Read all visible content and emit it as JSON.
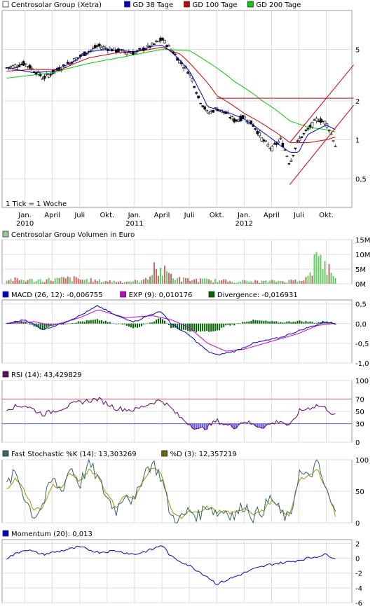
{
  "chart_data": {
    "type": "line",
    "note_tick": "1 Tick = 1 Woche",
    "x_labels": [
      {
        "label": "Jan.",
        "year": "2010",
        "date": "2010-01"
      },
      {
        "label": "April",
        "year": "",
        "date": "2010-04"
      },
      {
        "label": "Juli",
        "year": "",
        "date": "2010-07"
      },
      {
        "label": "Okt.",
        "year": "",
        "date": "2010-10"
      },
      {
        "label": "Jan.",
        "year": "2011",
        "date": "2011-01"
      },
      {
        "label": "April",
        "year": "",
        "date": "2011-04"
      },
      {
        "label": "Juli",
        "year": "",
        "date": "2011-07"
      },
      {
        "label": "Okt.",
        "year": "",
        "date": "2011-10"
      },
      {
        "label": "Jan.",
        "year": "2012",
        "date": "2012-01"
      },
      {
        "label": "April",
        "year": "",
        "date": "2012-04"
      },
      {
        "label": "Juli",
        "year": "",
        "date": "2012-07"
      },
      {
        "label": "Okt.",
        "year": "",
        "date": "2012-10"
      }
    ],
    "price": {
      "scale": "log",
      "y_ticks": [
        "5",
        "2",
        "1",
        "0,5"
      ],
      "y_tick_values": [
        5,
        2,
        1,
        0.5
      ],
      "ylim": [
        0.3,
        10
      ],
      "legend": [
        {
          "name": "Centrosolar Group (Xetra)",
          "color": "#ffffff"
        },
        {
          "name": "GD 38 Tage",
          "color": "#0000cc"
        },
        {
          "name": "GD 100 Tage",
          "color": "#cc0000"
        },
        {
          "name": "GD 200 Tage",
          "color": "#00cc00"
        }
      ],
      "price_anchors": [
        [
          "2009-11",
          3.6
        ],
        [
          "2010-01",
          3.9
        ],
        [
          "2010-03",
          3.0
        ],
        [
          "2010-05",
          3.6
        ],
        [
          "2010-07",
          4.4
        ],
        [
          "2010-09",
          5.3
        ],
        [
          "2010-11",
          4.9
        ],
        [
          "2011-01",
          4.7
        ],
        [
          "2011-03",
          5.4
        ],
        [
          "2011-04",
          6.0
        ],
        [
          "2011-05",
          5.0
        ],
        [
          "2011-06",
          4.0
        ],
        [
          "2011-07",
          3.3
        ],
        [
          "2011-08",
          2.1
        ],
        [
          "2011-09",
          1.6
        ],
        [
          "2011-10",
          1.75
        ],
        [
          "2011-11",
          1.6
        ],
        [
          "2011-12",
          1.4
        ],
        [
          "2012-01",
          1.5
        ],
        [
          "2012-02",
          1.3
        ],
        [
          "2012-03",
          1.0
        ],
        [
          "2012-04",
          0.85
        ],
        [
          "2012-05",
          1.0
        ],
        [
          "2012-06",
          0.65
        ],
        [
          "2012-07",
          1.0
        ],
        [
          "2012-08",
          1.2
        ],
        [
          "2012-09",
          1.45
        ],
        [
          "2012-10",
          1.35
        ],
        [
          "2012-11",
          0.9
        ]
      ],
      "gd38_anchors": [
        [
          "2009-11",
          3.6
        ],
        [
          "2010-02",
          3.3
        ],
        [
          "2010-04",
          3.4
        ],
        [
          "2010-06",
          3.9
        ],
        [
          "2010-08",
          4.8
        ],
        [
          "2010-10",
          5.0
        ],
        [
          "2011-01",
          4.8
        ],
        [
          "2011-03",
          5.3
        ],
        [
          "2011-04",
          5.4
        ],
        [
          "2011-05",
          4.8
        ],
        [
          "2011-07",
          3.4
        ],
        [
          "2011-08",
          2.5
        ],
        [
          "2011-09",
          1.8
        ],
        [
          "2011-11",
          1.65
        ],
        [
          "2012-01",
          1.45
        ],
        [
          "2012-03",
          1.15
        ],
        [
          "2012-05",
          0.9
        ],
        [
          "2012-06",
          0.8
        ],
        [
          "2012-07",
          0.8
        ],
        [
          "2012-08",
          1.1
        ],
        [
          "2012-10",
          1.3
        ],
        [
          "2012-11",
          1.2
        ]
      ],
      "gd100_anchors": [
        [
          "2009-11",
          3.4
        ],
        [
          "2010-02",
          3.5
        ],
        [
          "2010-05",
          3.5
        ],
        [
          "2010-08",
          4.3
        ],
        [
          "2010-11",
          4.7
        ],
        [
          "2011-02",
          4.9
        ],
        [
          "2011-04",
          5.2
        ],
        [
          "2011-06",
          4.6
        ],
        [
          "2011-08",
          3.3
        ],
        [
          "2011-10",
          2.2
        ],
        [
          "2012-01",
          1.6
        ],
        [
          "2012-04",
          1.2
        ],
        [
          "2012-06",
          0.95
        ],
        [
          "2012-08",
          0.95
        ],
        [
          "2012-10",
          1.0
        ],
        [
          "2012-11",
          1.05
        ]
      ],
      "gd200_anchors": [
        [
          "2009-11",
          3.0
        ],
        [
          "2010-04",
          3.3
        ],
        [
          "2010-08",
          3.9
        ],
        [
          "2010-12",
          4.4
        ],
        [
          "2011-04",
          5.0
        ],
        [
          "2011-07",
          4.9
        ],
        [
          "2011-09",
          4.0
        ],
        [
          "2011-12",
          2.8
        ],
        [
          "2012-03",
          2.0
        ],
        [
          "2012-06",
          1.4
        ],
        [
          "2012-08",
          1.25
        ],
        [
          "2012-10",
          1.2
        ],
        [
          "2012-11",
          1.15
        ]
      ],
      "trend_lines": [
        {
          "from": [
            "2011-10",
            2.1
          ],
          "to": [
            "2013-01",
            2.1
          ],
          "color": "#cc0000"
        },
        {
          "from": [
            "2012-06",
            0.95
          ],
          "to": [
            "2013-01",
            3.8
          ],
          "color": "#cc0000"
        },
        {
          "from": [
            "2012-06",
            0.45
          ],
          "to": [
            "2013-01",
            1.85
          ],
          "color": "#cc0000"
        }
      ]
    },
    "volume": {
      "title": "Centrosolar Group Volumen in Euro",
      "y_ticks": [
        "15M",
        "10M",
        "5M",
        "0M"
      ],
      "y_tick_values": [
        15,
        10,
        5,
        0
      ],
      "ylim": [
        0,
        15
      ],
      "unit": "M Euro",
      "anchors": [
        [
          "2009-11",
          1.5
        ],
        [
          "2010-02",
          1.2
        ],
        [
          "2010-06",
          1.8
        ],
        [
          "2010-09",
          1.0
        ],
        [
          "2010-12",
          0.8
        ],
        [
          "2011-02",
          1.0
        ],
        [
          "2011-03",
          5.0
        ],
        [
          "2011-04",
          4.5
        ],
        [
          "2011-06",
          1.5
        ],
        [
          "2011-09",
          1.2
        ],
        [
          "2011-12",
          0.9
        ],
        [
          "2012-03",
          0.8
        ],
        [
          "2012-06",
          1.0
        ],
        [
          "2012-08",
          2.0
        ],
        [
          "2012-09",
          9.0
        ],
        [
          "2012-10",
          6.0
        ],
        [
          "2012-11",
          3.0
        ]
      ],
      "peaks": [
        [
          "2012-09",
          12.0
        ],
        [
          "2012-09",
          11.0
        ],
        [
          "2011-03",
          5.5
        ]
      ]
    },
    "macd": {
      "legend": [
        {
          "name": "MACD (26, 12): -0,006755",
          "color": "#0000cc"
        },
        {
          "name": "EXP (9): 0,010176",
          "color": "#cc00cc"
        },
        {
          "name": "Divergence: -0,016931",
          "color": "#006600"
        }
      ],
      "y_ticks": [
        "0,5",
        "0,0",
        "-0,5",
        "-1,0"
      ],
      "y_tick_values": [
        0.5,
        0,
        -0.5,
        -1
      ],
      "ylim": [
        -1.0,
        0.6
      ],
      "macd_anchors": [
        [
          "2009-11",
          0.0
        ],
        [
          "2010-01",
          0.1
        ],
        [
          "2010-03",
          -0.15
        ],
        [
          "2010-05",
          0.0
        ],
        [
          "2010-07",
          0.2
        ],
        [
          "2010-09",
          0.45
        ],
        [
          "2010-11",
          0.2
        ],
        [
          "2011-01",
          0.05
        ],
        [
          "2011-03",
          0.25
        ],
        [
          "2011-04",
          0.3
        ],
        [
          "2011-05",
          0.0
        ],
        [
          "2011-07",
          -0.3
        ],
        [
          "2011-09",
          -0.7
        ],
        [
          "2011-10",
          -0.8
        ],
        [
          "2011-12",
          -0.7
        ],
        [
          "2012-02",
          -0.5
        ],
        [
          "2012-05",
          -0.35
        ],
        [
          "2012-08",
          -0.1
        ],
        [
          "2012-10",
          0.05
        ],
        [
          "2012-11",
          -0.01
        ]
      ],
      "exp_anchors": [
        [
          "2009-11",
          0.0
        ],
        [
          "2010-02",
          0.05
        ],
        [
          "2010-04",
          -0.05
        ],
        [
          "2010-07",
          0.15
        ],
        [
          "2010-09",
          0.35
        ],
        [
          "2010-12",
          0.15
        ],
        [
          "2011-03",
          0.2
        ],
        [
          "2011-05",
          0.1
        ],
        [
          "2011-07",
          -0.1
        ],
        [
          "2011-09",
          -0.5
        ],
        [
          "2011-11",
          -0.7
        ],
        [
          "2012-01",
          -0.65
        ],
        [
          "2012-04",
          -0.45
        ],
        [
          "2012-07",
          -0.25
        ],
        [
          "2012-09",
          -0.05
        ],
        [
          "2012-11",
          0.01
        ]
      ]
    },
    "rsi": {
      "legend": [
        {
          "name": "RSI (14): 43,429829",
          "color": "#660066"
        }
      ],
      "y_ticks": [
        "100",
        "70",
        "50",
        "30",
        "0"
      ],
      "y_tick_values": [
        100,
        70,
        50,
        30,
        0
      ],
      "ylim": [
        0,
        100
      ],
      "overbought": 70,
      "oversold": 30,
      "anchors": [
        [
          "2009-11",
          55
        ],
        [
          "2010-01",
          60
        ],
        [
          "2010-03",
          45
        ],
        [
          "2010-05",
          55
        ],
        [
          "2010-07",
          65
        ],
        [
          "2010-09",
          70
        ],
        [
          "2010-11",
          55
        ],
        [
          "2011-01",
          52
        ],
        [
          "2011-03",
          65
        ],
        [
          "2011-04",
          68
        ],
        [
          "2011-05",
          55
        ],
        [
          "2011-06",
          40
        ],
        [
          "2011-07",
          30
        ],
        [
          "2011-08",
          20
        ],
        [
          "2011-09",
          25
        ],
        [
          "2011-10",
          35
        ],
        [
          "2011-11",
          28
        ],
        [
          "2011-12",
          25
        ],
        [
          "2012-01",
          35
        ],
        [
          "2012-02",
          28
        ],
        [
          "2012-03",
          25
        ],
        [
          "2012-04",
          30
        ],
        [
          "2012-05",
          35
        ],
        [
          "2012-06",
          25
        ],
        [
          "2012-07",
          50
        ],
        [
          "2012-08",
          55
        ],
        [
          "2012-09",
          60
        ],
        [
          "2012-10",
          55
        ],
        [
          "2012-11",
          43
        ]
      ]
    },
    "stochastic": {
      "legend": [
        {
          "name": "Fast Stochastic %K (14): 13,303269",
          "color": "#336666"
        },
        {
          "name": "%D (3): 12,357219",
          "color": "#666600"
        }
      ],
      "y_ticks": [
        "100",
        "50",
        "0"
      ],
      "y_tick_values": [
        100,
        50,
        0
      ],
      "ylim": [
        0,
        100
      ],
      "k_anchors": [
        [
          "2009-11",
          60
        ],
        [
          "2009-12",
          80
        ],
        [
          "2010-01",
          40
        ],
        [
          "2010-02",
          10
        ],
        [
          "2010-03",
          30
        ],
        [
          "2010-04",
          70
        ],
        [
          "2010-05",
          50
        ],
        [
          "2010-06",
          90
        ],
        [
          "2010-07",
          60
        ],
        [
          "2010-08",
          95
        ],
        [
          "2010-09",
          70
        ],
        [
          "2010-10",
          40
        ],
        [
          "2010-11",
          20
        ],
        [
          "2010-12",
          50
        ],
        [
          "2011-01",
          30
        ],
        [
          "2011-02",
          80
        ],
        [
          "2011-03",
          95
        ],
        [
          "2011-04",
          70
        ],
        [
          "2011-05",
          10
        ],
        [
          "2011-06",
          5
        ],
        [
          "2011-07",
          20
        ],
        [
          "2011-08",
          10
        ],
        [
          "2011-09",
          30
        ],
        [
          "2011-10",
          15
        ],
        [
          "2011-11",
          20
        ],
        [
          "2011-12",
          10
        ],
        [
          "2012-01",
          30
        ],
        [
          "2012-02",
          10
        ],
        [
          "2012-03",
          20
        ],
        [
          "2012-04",
          40
        ],
        [
          "2012-05",
          15
        ],
        [
          "2012-06",
          5
        ],
        [
          "2012-07",
          80
        ],
        [
          "2012-08",
          70
        ],
        [
          "2012-09",
          95
        ],
        [
          "2012-10",
          50
        ],
        [
          "2012-11",
          13
        ]
      ],
      "d_anchors": [
        [
          "2009-11",
          55
        ],
        [
          "2009-12",
          70
        ],
        [
          "2010-01",
          50
        ],
        [
          "2010-02",
          20
        ],
        [
          "2010-03",
          25
        ],
        [
          "2010-04",
          60
        ],
        [
          "2010-05",
          55
        ],
        [
          "2010-06",
          80
        ],
        [
          "2010-07",
          65
        ],
        [
          "2010-08",
          85
        ],
        [
          "2010-09",
          75
        ],
        [
          "2010-10",
          45
        ],
        [
          "2010-11",
          25
        ],
        [
          "2010-12",
          45
        ],
        [
          "2011-01",
          35
        ],
        [
          "2011-02",
          70
        ],
        [
          "2011-03",
          90
        ],
        [
          "2011-04",
          75
        ],
        [
          "2011-05",
          20
        ],
        [
          "2011-06",
          8
        ],
        [
          "2011-07",
          18
        ],
        [
          "2011-08",
          14
        ],
        [
          "2011-09",
          25
        ],
        [
          "2011-10",
          18
        ],
        [
          "2011-11",
          18
        ],
        [
          "2011-12",
          14
        ],
        [
          "2012-01",
          25
        ],
        [
          "2012-02",
          15
        ],
        [
          "2012-03",
          18
        ],
        [
          "2012-04",
          35
        ],
        [
          "2012-05",
          20
        ],
        [
          "2012-06",
          10
        ],
        [
          "2012-07",
          70
        ],
        [
          "2012-08",
          72
        ],
        [
          "2012-09",
          85
        ],
        [
          "2012-10",
          55
        ],
        [
          "2012-11",
          12
        ]
      ]
    },
    "momentum": {
      "legend": [
        {
          "name": "Momentum (20): 0,013",
          "color": "#0000cc"
        }
      ],
      "y_ticks": [
        "2",
        "0",
        "-2",
        "-4",
        "-6"
      ],
      "y_tick_values": [
        2,
        0,
        -2,
        -4,
        -6
      ],
      "ylim": [
        -6,
        2.5
      ],
      "anchors": [
        [
          "2009-11",
          0.0
        ],
        [
          "2010-01",
          1.2
        ],
        [
          "2010-03",
          0.5
        ],
        [
          "2010-05",
          1.0
        ],
        [
          "2010-07",
          1.5
        ],
        [
          "2010-09",
          0.8
        ],
        [
          "2010-11",
          1.0
        ],
        [
          "2011-01",
          0.5
        ],
        [
          "2011-03",
          1.2
        ],
        [
          "2011-04",
          1.8
        ],
        [
          "2011-05",
          0.2
        ],
        [
          "2011-07",
          -1.0
        ],
        [
          "2011-09",
          -2.5
        ],
        [
          "2011-10",
          -3.5
        ],
        [
          "2011-12",
          -2.5
        ],
        [
          "2012-02",
          -1.5
        ],
        [
          "2012-04",
          -0.8
        ],
        [
          "2012-06",
          -0.5
        ],
        [
          "2012-08",
          0.0
        ],
        [
          "2012-10",
          0.5
        ],
        [
          "2012-11",
          0.013
        ]
      ]
    }
  }
}
